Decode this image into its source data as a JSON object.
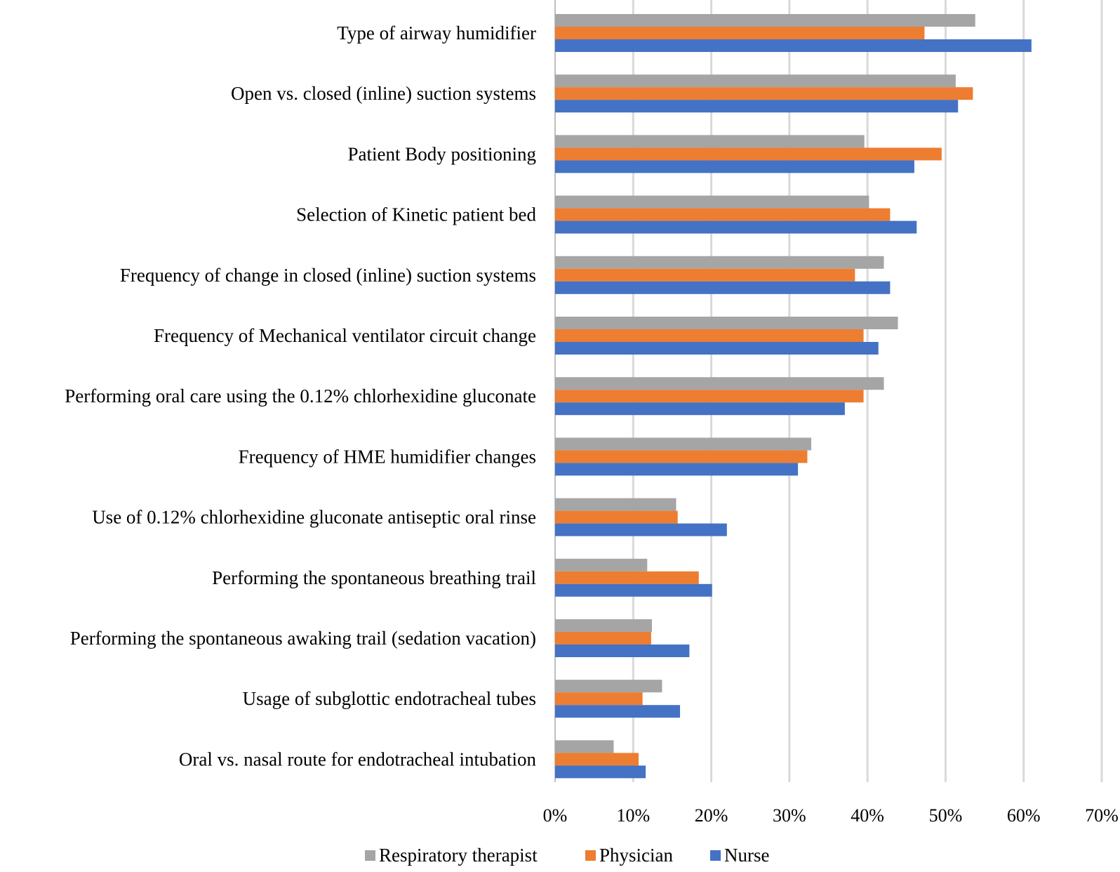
{
  "chart_data": {
    "type": "bar",
    "orientation": "horizontal",
    "title": "",
    "xlabel": "",
    "ylabel": "",
    "xlim": [
      0,
      70
    ],
    "ticks": [
      "0%",
      "10%",
      "20%",
      "30%",
      "40%",
      "50%",
      "60%",
      "70%"
    ],
    "grid": true,
    "legend_position": "bottom",
    "categories": [
      "Type of airway humidifier",
      "Open vs. closed (inline) suction systems",
      "Patient Body positioning",
      "Selection of Kinetic patient bed",
      "Frequency of change in closed (inline) suction systems",
      "Frequency of Mechanical ventilator circuit change",
      "Performing oral care using the 0.12% chlorhexidine gluconate",
      "Frequency of HME humidifier changes",
      "Use of 0.12% chlorhexidine gluconate antiseptic oral rinse",
      "Performing the spontaneous breathing trail",
      "Performing the spontaneous awaking trail (sedation vacation)",
      "Usage of subglottic endotracheal tubes",
      "Oral vs. nasal route for endotracheal intubation"
    ],
    "series": [
      {
        "name": "Respiratory therapist",
        "color": "#a5a5a5",
        "values": [
          53.8,
          51.3,
          39.6,
          40.2,
          42.1,
          43.9,
          42.1,
          32.8,
          15.5,
          11.8,
          12.4,
          13.7,
          7.5
        ]
      },
      {
        "name": "Physician",
        "color": "#ed7d31",
        "values": [
          47.3,
          53.5,
          49.5,
          42.9,
          38.4,
          39.5,
          39.5,
          32.3,
          15.7,
          18.4,
          12.3,
          11.2,
          10.7
        ]
      },
      {
        "name": "Nurse",
        "color": "#4472c4",
        "values": [
          61.0,
          51.6,
          46.0,
          46.3,
          42.9,
          41.4,
          37.1,
          31.1,
          22.0,
          20.1,
          17.2,
          16.0,
          11.6
        ]
      }
    ]
  }
}
